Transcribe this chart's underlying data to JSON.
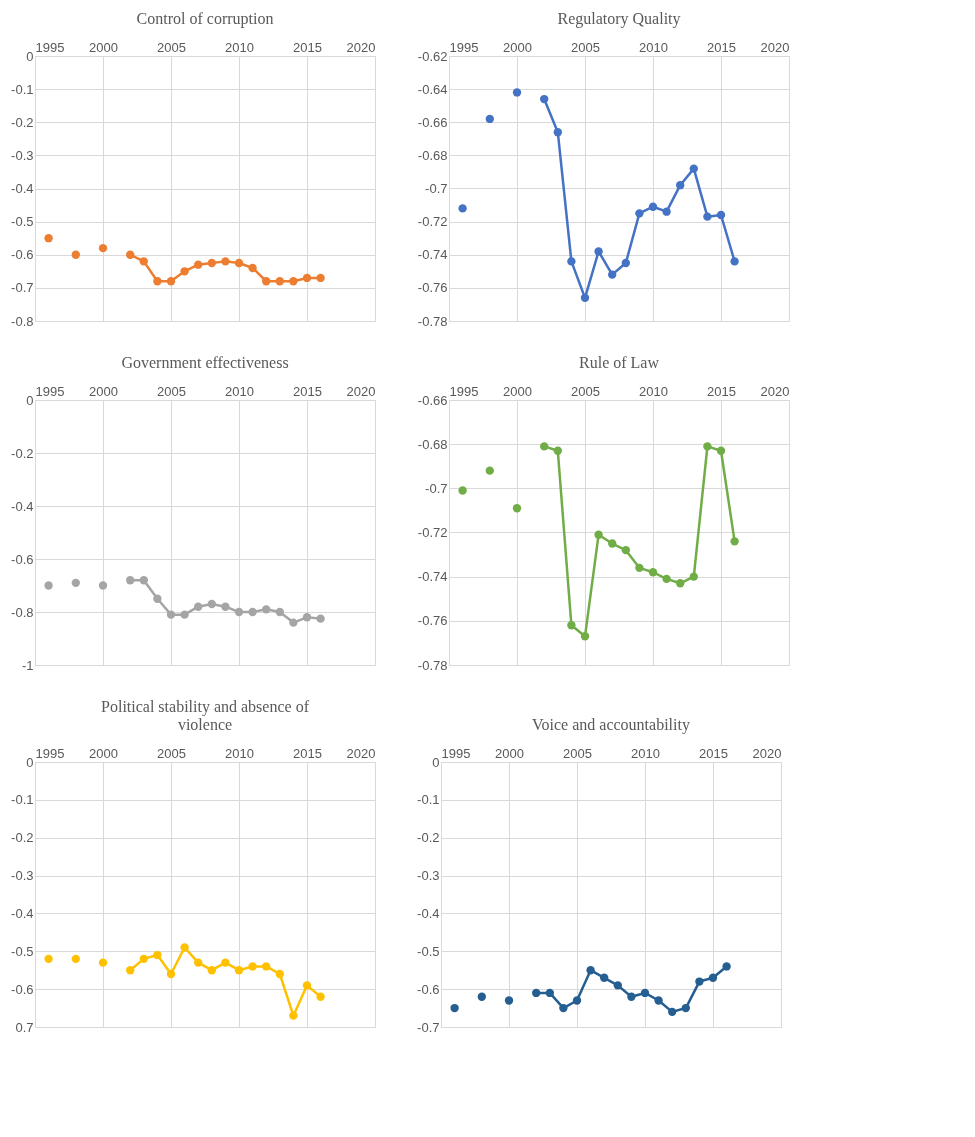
{
  "chart_data": [
    {
      "type": "line",
      "title": "Control of corruption",
      "x": [
        1996,
        1997,
        1998,
        1999,
        2000,
        2001,
        2002,
        2003,
        2004,
        2005,
        2006,
        2007,
        2008,
        2009,
        2010,
        2011,
        2012,
        2013,
        2014,
        2015,
        2016
      ],
      "series": [
        {
          "color": "#ed7d31",
          "values": [
            -0.55,
            null,
            -0.6,
            null,
            -0.58,
            null,
            -0.6,
            -0.62,
            -0.68,
            -0.68,
            -0.65,
            -0.63,
            -0.625,
            -0.62,
            -0.625,
            -0.64,
            -0.68,
            -0.68,
            -0.68,
            -0.67,
            -0.67
          ]
        }
      ],
      "xlim": [
        1995,
        2020
      ],
      "xticks": [
        1995,
        2000,
        2005,
        2010,
        2015,
        2020
      ],
      "ylim": [
        -0.8,
        0
      ],
      "yticks": [
        0,
        -0.1,
        -0.2,
        -0.3,
        -0.4,
        -0.5,
        -0.6,
        -0.7,
        -0.8
      ],
      "grid": true,
      "marker": "circle",
      "line_style": "solid"
    },
    {
      "type": "line",
      "title": "Regulatory Quality",
      "x": [
        1996,
        1997,
        1998,
        1999,
        2000,
        2001,
        2002,
        2003,
        2004,
        2005,
        2006,
        2007,
        2008,
        2009,
        2010,
        2011,
        2012,
        2013,
        2014,
        2015,
        2016
      ],
      "series": [
        {
          "color": "#4472c4",
          "values": [
            -0.712,
            null,
            -0.658,
            null,
            -0.642,
            null,
            -0.646,
            -0.666,
            -0.744,
            -0.766,
            -0.738,
            -0.752,
            -0.745,
            -0.715,
            -0.711,
            -0.714,
            -0.698,
            -0.688,
            -0.717,
            -0.716,
            -0.744
          ]
        }
      ],
      "xlim": [
        1995,
        2020
      ],
      "xticks": [
        1995,
        2000,
        2005,
        2010,
        2015,
        2020
      ],
      "ylim": [
        -0.78,
        -0.62
      ],
      "yticks": [
        -0.62,
        -0.64,
        -0.66,
        -0.68,
        -0.7,
        -0.72,
        -0.74,
        -0.76,
        -0.78
      ],
      "grid": true,
      "marker": "circle",
      "line_style": "solid"
    },
    {
      "type": "line",
      "title": "Government effectiveness",
      "x": [
        1996,
        1997,
        1998,
        1999,
        2000,
        2001,
        2002,
        2003,
        2004,
        2005,
        2006,
        2007,
        2008,
        2009,
        2010,
        2011,
        2012,
        2013,
        2014,
        2015,
        2016
      ],
      "series": [
        {
          "color": "#a5a5a5",
          "values": [
            -0.7,
            null,
            -0.69,
            null,
            -0.7,
            null,
            -0.68,
            -0.68,
            -0.75,
            -0.81,
            -0.81,
            -0.78,
            -0.77,
            -0.78,
            -0.8,
            -0.8,
            -0.79,
            -0.8,
            -0.84,
            -0.82,
            -0.825
          ]
        }
      ],
      "xlim": [
        1995,
        2020
      ],
      "xticks": [
        1995,
        2000,
        2005,
        2010,
        2015,
        2020
      ],
      "ylim": [
        -1,
        0
      ],
      "yticks": [
        0,
        -0.2,
        -0.4,
        -0.6,
        -0.8,
        -1
      ],
      "grid": true,
      "marker": "circle",
      "line_style": "solid"
    },
    {
      "type": "line",
      "title": "Rule of Law",
      "x": [
        1996,
        1997,
        1998,
        1999,
        2000,
        2001,
        2002,
        2003,
        2004,
        2005,
        2006,
        2007,
        2008,
        2009,
        2010,
        2011,
        2012,
        2013,
        2014,
        2015,
        2016
      ],
      "series": [
        {
          "color": "#70ad47",
          "values": [
            -0.701,
            null,
            -0.692,
            null,
            -0.709,
            null,
            -0.681,
            -0.683,
            -0.762,
            -0.767,
            -0.721,
            -0.725,
            -0.728,
            -0.736,
            -0.738,
            -0.741,
            -0.743,
            -0.74,
            -0.681,
            -0.683,
            -0.724
          ]
        }
      ],
      "xlim": [
        1995,
        2020
      ],
      "xticks": [
        1995,
        2000,
        2005,
        2010,
        2015,
        2020
      ],
      "ylim": [
        -0.78,
        -0.66
      ],
      "yticks": [
        -0.66,
        -0.68,
        -0.7,
        -0.72,
        -0.74,
        -0.76,
        -0.78
      ],
      "grid": true,
      "marker": "circle",
      "line_style": "solid"
    },
    {
      "type": "line",
      "title": "Political stability and absence of violence",
      "x": [
        1996,
        1997,
        1998,
        1999,
        2000,
        2001,
        2002,
        2003,
        2004,
        2005,
        2006,
        2007,
        2008,
        2009,
        2010,
        2011,
        2012,
        2013,
        2014,
        2015,
        2016
      ],
      "series": [
        {
          "color": "#ffc000",
          "values": [
            -0.52,
            null,
            -0.52,
            null,
            -0.53,
            null,
            -0.55,
            -0.52,
            -0.51,
            -0.56,
            -0.49,
            -0.53,
            -0.55,
            -0.53,
            -0.55,
            -0.54,
            -0.54,
            -0.56,
            -0.67,
            -0.59,
            -0.62
          ]
        }
      ],
      "xlim": [
        1995,
        2020
      ],
      "xticks": [
        1995,
        2000,
        2005,
        2010,
        2015,
        2020
      ],
      "ylim": [
        -0.7,
        0
      ],
      "yticks": [
        0,
        -0.1,
        -0.2,
        -0.3,
        -0.4,
        -0.5,
        -0.6,
        {
          "value": -0.7,
          "label": "0.7"
        }
      ],
      "grid": true,
      "marker": "circle",
      "line_style": "solid"
    },
    {
      "type": "line",
      "title": "Voice and accountability",
      "x": [
        1996,
        1997,
        1998,
        1999,
        2000,
        2001,
        2002,
        2003,
        2004,
        2005,
        2006,
        2007,
        2008,
        2009,
        2010,
        2011,
        2012,
        2013,
        2014,
        2015,
        2016
      ],
      "series": [
        {
          "color": "#255e91",
          "values": [
            -0.65,
            null,
            -0.62,
            null,
            -0.63,
            null,
            -0.61,
            -0.61,
            -0.65,
            -0.63,
            -0.55,
            -0.57,
            -0.59,
            -0.62,
            -0.61,
            -0.63,
            -0.66,
            -0.65,
            -0.58,
            -0.57,
            -0.54
          ]
        }
      ],
      "xlim": [
        1995,
        2020
      ],
      "xticks": [
        1995,
        2000,
        2005,
        2010,
        2015,
        2020
      ],
      "ylim": [
        -0.7,
        0
      ],
      "yticks": [
        0,
        -0.1,
        -0.2,
        -0.3,
        -0.4,
        -0.5,
        -0.6,
        -0.7
      ],
      "grid": true,
      "marker": "circle",
      "line_style": "solid"
    }
  ]
}
